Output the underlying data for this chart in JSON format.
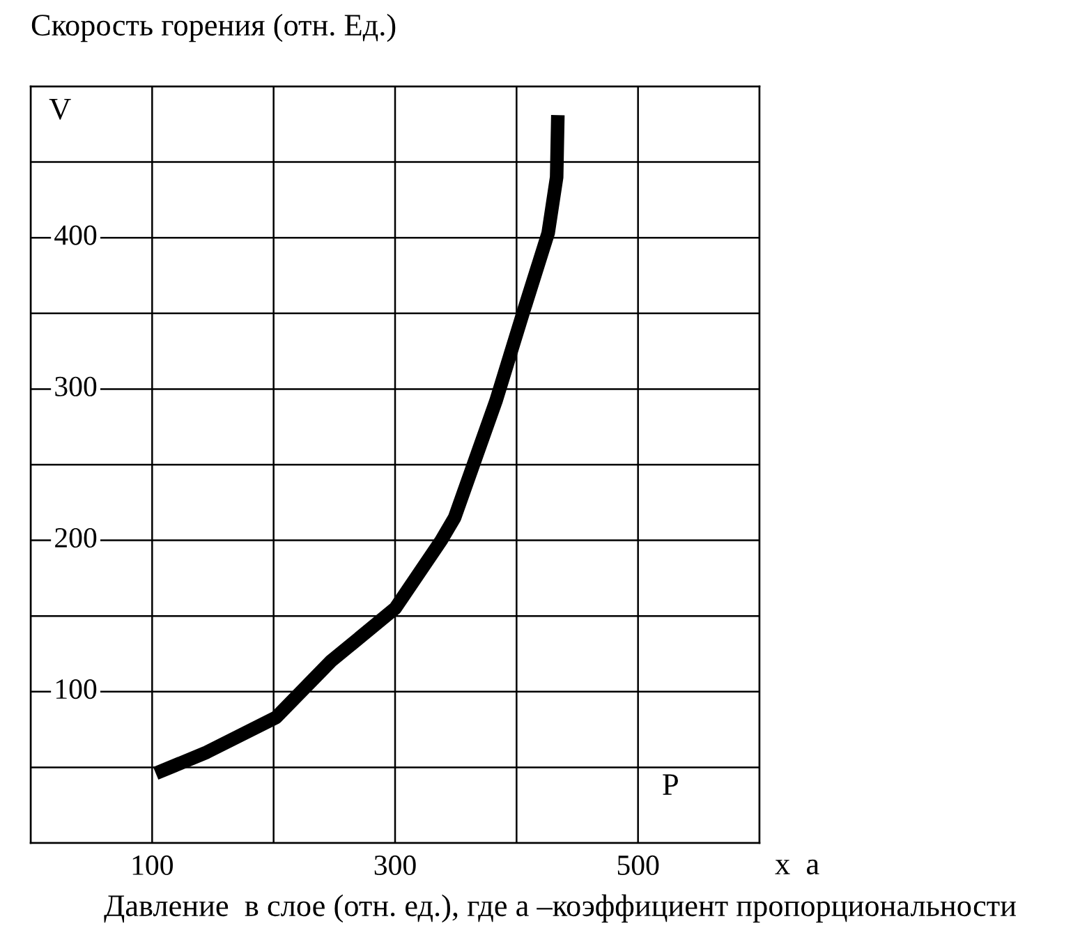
{
  "chart_data": {
    "type": "line",
    "title": "Скорость горения (отн. Ед.)",
    "xlabel": "Давление  в слое (отн. ед.), где а –коэффициент пропорциональности",
    "ylabel": "V",
    "annotations": [
      "P",
      "x  а"
    ],
    "series": [
      {
        "color": "#000000",
        "x": [
          103,
          145,
          202,
          247,
          300,
          338,
          349,
          383,
          406,
          426,
          433,
          434
        ],
        "values": [
          46,
          60,
          83,
          120,
          155,
          200,
          215,
          292,
          352,
          403,
          440,
          481
        ]
      }
    ],
    "xlim": [
      0,
      600
    ],
    "xticks": [
      {
        "value": 0,
        "label": null
      },
      100,
      {
        "value": 200,
        "label": null
      },
      300,
      {
        "value": 400,
        "label": null
      },
      500,
      {
        "value": 600,
        "label": null
      }
    ],
    "ylim": [
      0,
      500
    ],
    "yticks": [
      {
        "value": 0,
        "label": null
      },
      {
        "value": 50,
        "label": null
      },
      100,
      {
        "value": 150,
        "label": null
      },
      200,
      {
        "value": 250,
        "label": null
      },
      300,
      {
        "value": 350,
        "label": null
      },
      400,
      {
        "value": 450,
        "label": null
      },
      {
        "value": 500,
        "label": null
      }
    ],
    "grid": true,
    "line_style": "solid",
    "marker": "none"
  }
}
